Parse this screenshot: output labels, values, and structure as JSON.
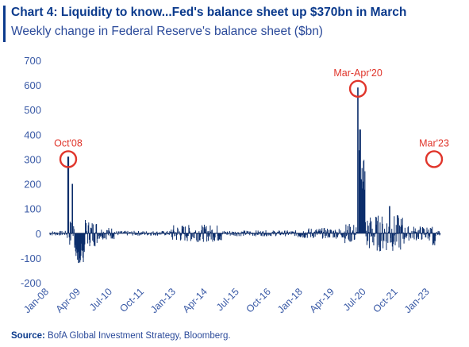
{
  "title": "Chart 4: Liquidity to know...Fed's balance sheet up $370bn in March",
  "subtitle": "Weekly change in Federal Reserve's balance sheet ($bn)",
  "source_label": "Source:",
  "source_text": "BofA Global Investment Strategy, Bloomberg.",
  "colors": {
    "series": "#0b2d6b",
    "accent": "#e0352b",
    "title": "#0b3a8c",
    "axis_text": "#3a5aa6"
  },
  "chart_data": {
    "type": "bar",
    "ylim": [
      -200,
      700
    ],
    "yticks": [
      -200,
      -100,
      0,
      100,
      200,
      300,
      400,
      500,
      600,
      700
    ],
    "xlim": [
      "2008-01",
      "2023-06"
    ],
    "xticks": [
      "Jan-08",
      "Apr-09",
      "Jul-10",
      "Oct-11",
      "Jan-13",
      "Apr-14",
      "Jul-15",
      "Oct-16",
      "Jan-18",
      "Apr-19",
      "Jul-20",
      "Oct-21",
      "Jan-23"
    ],
    "grid": false,
    "annotations": [
      {
        "label": "Oct'08",
        "date": "2008-10",
        "value": 300
      },
      {
        "label": "Mar-Apr'20",
        "date": "2020-03",
        "value": 585
      },
      {
        "label": "Mar'23",
        "date": "2023-03",
        "value": 300
      }
    ],
    "key_points": [
      {
        "date": "2008-10",
        "value": 310
      },
      {
        "date": "2008-12",
        "value": 200
      },
      {
        "date": "2009-03",
        "value": -120
      },
      {
        "date": "2020-03",
        "value": 590
      },
      {
        "date": "2020-04",
        "value": 420
      },
      {
        "date": "2021-06",
        "value": 110
      },
      {
        "date": "2023-03",
        "value": 300
      }
    ]
  }
}
